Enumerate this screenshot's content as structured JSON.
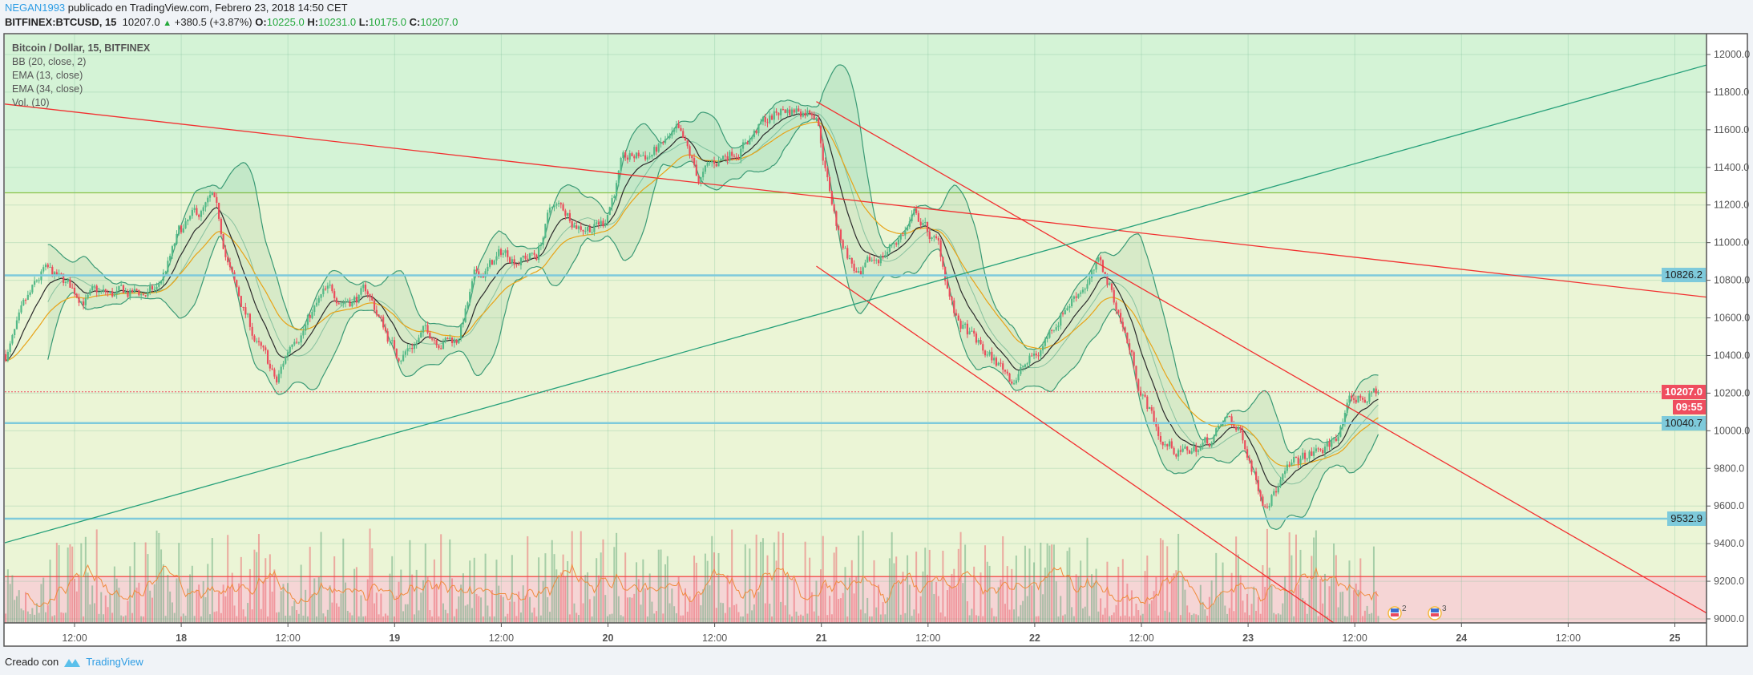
{
  "header": {
    "user": "NEGAN1993",
    "published": "publicado en TradingView.com, Febrero 23, 2018 14:50 CET",
    "symbol": "BITFINEX:BTCUSD, 15",
    "last": "10207.0",
    "change": "+380.5 (+3.87%)",
    "open_label": "O:",
    "open": "10225.0",
    "high_label": "H:",
    "high": "10231.0",
    "low_label": "L:",
    "low": "10175.0",
    "close_label": "C:",
    "close": "10207.0"
  },
  "legend": {
    "title": "Bitcoin / Dollar, 15, BITFINEX",
    "bb": "BB (20, close, 2)",
    "ema13": "EMA (13, close)",
    "ema34": "EMA (34, close)",
    "vol": "Vol. (10)"
  },
  "price_labels": {
    "level1": "10826.2",
    "current": "10207.0",
    "countdown": "09:55",
    "level2": "10040.7",
    "level3": "9532.9"
  },
  "events": [
    {
      "label": "2"
    },
    {
      "label": "3"
    }
  ],
  "footer": {
    "created_with": "Creado con",
    "brand": "TradingView"
  },
  "colors": {
    "up": "#53b987",
    "down": "#eb4d5c",
    "bb": "#3a9a75",
    "ema13": "#2b2b2b",
    "ema34": "#e8a317",
    "zone_top": "#d4f3d6",
    "zone_mid": "#ebf5d6",
    "zone_bottom": "#f5d5d5",
    "hline": "#7ecadb",
    "trend_red": "#f23030",
    "trend_green": "#26a07a",
    "accent": "#2e9de4"
  },
  "chart_data": {
    "type": "candlestick",
    "interval": "15",
    "ylim": [
      9000,
      12000
    ],
    "yticks": [
      "12000.0",
      "11800.0",
      "11600.0",
      "11400.0",
      "11200.0",
      "11000.0",
      "10800.0",
      "10600.0",
      "10400.0",
      "10200.0",
      "10000.0",
      "9800.0",
      "9600.0",
      "9400.0",
      "9200.0",
      "9000.0"
    ],
    "xticks": [
      "12:00",
      "18",
      "12:00",
      "19",
      "12:00",
      "20",
      "12:00",
      "21",
      "12:00",
      "22",
      "12:00",
      "23",
      "12:00",
      "24",
      "12:00",
      "25"
    ],
    "grid": true,
    "close_path": [
      {
        "t": "17 04:15",
        "p": 10407
      },
      {
        "t": "17 08:30",
        "p": 10818
      },
      {
        "t": "17 12:00",
        "p": 10730
      },
      {
        "t": "17 16:00",
        "p": 10700
      },
      {
        "t": "17 21:15",
        "p": 10730
      },
      {
        "t": "17 23:45",
        "p": 11024
      },
      {
        "t": "18 03:30",
        "p": 11200
      },
      {
        "t": "18 06:00",
        "p": 10760
      },
      {
        "t": "18 08:30",
        "p": 10465
      },
      {
        "t": "18 10:45",
        "p": 10230
      },
      {
        "t": "18 12:45",
        "p": 10524
      },
      {
        "t": "18 16:00",
        "p": 10700
      },
      {
        "t": "18 21:00",
        "p": 10730
      },
      {
        "t": "19 00:15",
        "p": 10407
      },
      {
        "t": "19 03:30",
        "p": 10524
      },
      {
        "t": "19 07:00",
        "p": 10494
      },
      {
        "t": "19 09:00",
        "p": 10790
      },
      {
        "t": "19 12:15",
        "p": 10936
      },
      {
        "t": "19 16:00",
        "p": 10936
      },
      {
        "t": "19 17:45",
        "p": 11200
      },
      {
        "t": "19 21:00",
        "p": 11112
      },
      {
        "t": "19 23:30",
        "p": 11112
      },
      {
        "t": "20 01:30",
        "p": 11406
      },
      {
        "t": "20 04:30",
        "p": 11465
      },
      {
        "t": "20 07:45",
        "p": 11553
      },
      {
        "t": "20 10:15",
        "p": 11318
      },
      {
        "t": "20 13:15",
        "p": 11465
      },
      {
        "t": "20 17:00",
        "p": 11612
      },
      {
        "t": "20 19:30",
        "p": 11700
      },
      {
        "t": "20 23:30",
        "p": 11730
      },
      {
        "t": "21 00:45",
        "p": 11347
      },
      {
        "t": "21 02:00",
        "p": 11053
      },
      {
        "t": "21 04:30",
        "p": 10790
      },
      {
        "t": "21 07:00",
        "p": 10936
      },
      {
        "t": "21 10:45",
        "p": 11141
      },
      {
        "t": "21 13:15",
        "p": 10965
      },
      {
        "t": "21 15:15",
        "p": 10583
      },
      {
        "t": "21 18:15",
        "p": 10407
      },
      {
        "t": "21 21:30",
        "p": 10289
      },
      {
        "t": "22 00:30",
        "p": 10407
      },
      {
        "t": "22 03:00",
        "p": 10642
      },
      {
        "t": "22 05:30",
        "p": 10790
      },
      {
        "t": "22 07:30",
        "p": 10877
      },
      {
        "t": "22 09:30",
        "p": 10642
      },
      {
        "t": "22 12:00",
        "p": 10230
      },
      {
        "t": "22 14:30",
        "p": 9936
      },
      {
        "t": "22 17:00",
        "p": 9877
      },
      {
        "t": "22 19:30",
        "p": 9936
      },
      {
        "t": "22 22:00",
        "p": 10054
      },
      {
        "t": "22 23:45",
        "p": 9936
      },
      {
        "t": "23 01:45",
        "p": 9671
      },
      {
        "t": "23 04:15",
        "p": 9760
      },
      {
        "t": "23 06:45",
        "p": 9848
      },
      {
        "t": "23 09:15",
        "p": 9906
      },
      {
        "t": "23 11:45",
        "p": 10142
      },
      {
        "t": "23 14:45",
        "p": 10207
      }
    ],
    "zones": {
      "top_above": 11265,
      "bottom_below": 9225
    },
    "horizontal_levels": [
      10826.2,
      10040.7,
      9532.9
    ],
    "current_price": 10207.0,
    "trendlines": [
      {
        "color": "red",
        "from": {
          "t": "17 03:30",
          "p": 11740
        },
        "to": {
          "t": "25 03:45",
          "p": 10710
        }
      },
      {
        "color": "red",
        "from": {
          "t": "20 23:30",
          "p": 11750
        },
        "to": {
          "t": "25 03:45",
          "p": 9030
        }
      },
      {
        "color": "red",
        "from": {
          "t": "20 23:30",
          "p": 10875
        },
        "to": {
          "t": "23 15:45",
          "p": 8783
        }
      },
      {
        "color": "green",
        "from": {
          "t": "17 03:30",
          "p": 9396
        },
        "to": {
          "t": "25 03:45",
          "p": 11945
        }
      }
    ]
  }
}
